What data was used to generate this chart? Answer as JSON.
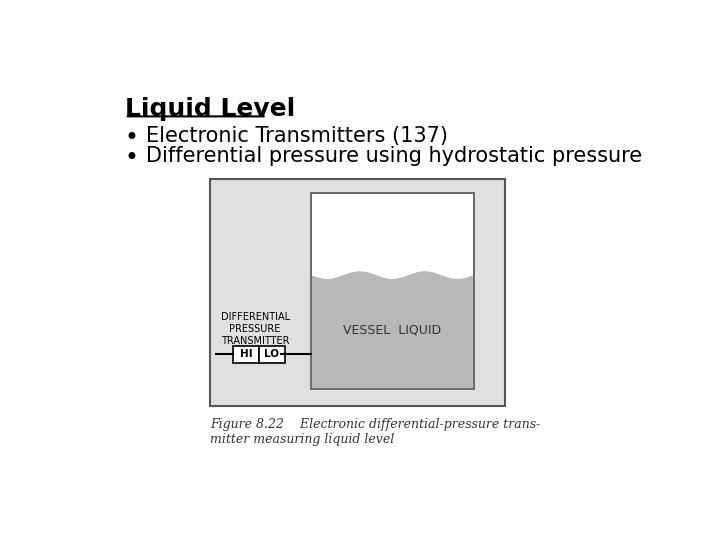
{
  "title": "Liquid Level",
  "bullet1": "Electronic Transmitters (137)",
  "bullet2": "Differential pressure using hydrostatic pressure",
  "fig_caption_line1": "Figure 8.22    Electronic differential-pressure trans-",
  "fig_caption_line2": "mitter measuring liquid level",
  "bg_color": "#ffffff",
  "diagram_bg": "#e0e0e0",
  "vessel_liquid_color": "#b8b8b8",
  "title_fontsize": 18,
  "bullet_fontsize": 15,
  "caption_fontsize": 9
}
